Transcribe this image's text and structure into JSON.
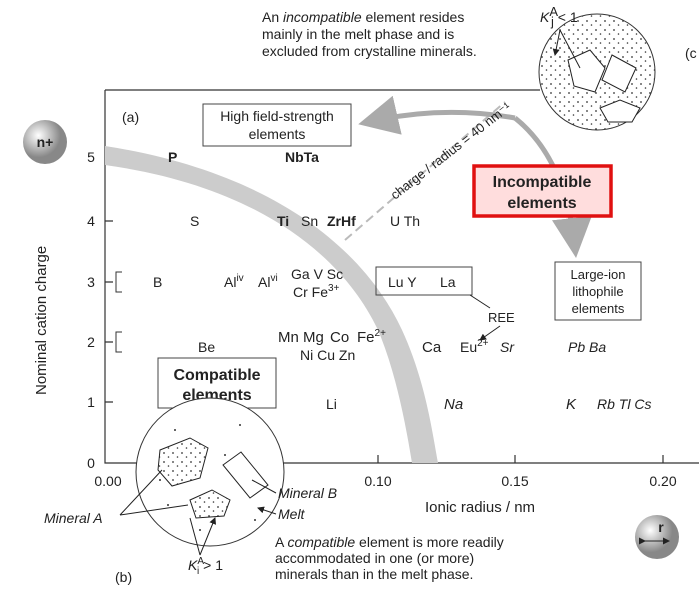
{
  "top_note": {
    "line1": [
      "An ",
      "incompatible",
      " element resides"
    ],
    "line2": "mainly in the melt phase and is",
    "line3": "excluded from crystalline minerals."
  },
  "panel_labels": {
    "a": "(a)",
    "b": "(b)",
    "c": "(c"
  },
  "icons": {
    "charge": "n+",
    "radius": "r"
  },
  "axes": {
    "y_label": "Nominal cation charge",
    "x_label": "Ionic radius / nm",
    "x_ticks": [
      "0.00",
      "0.10",
      "0.15",
      "0.20"
    ],
    "y_ticks": [
      "0",
      "1",
      "2",
      "3",
      "4",
      "5"
    ]
  },
  "boxes": {
    "hfse": [
      "High field-strength",
      "elements"
    ],
    "incompatible": [
      "Incompatible",
      "elements"
    ],
    "lile": [
      "Large-ion",
      "lithophile",
      "elements"
    ],
    "compatible": [
      "Compatible",
      "elements"
    ]
  },
  "line_label": "charge / radius = 40 nm⁻¹",
  "ree": "REE",
  "kj": {
    "base": "K",
    "sub": "j",
    "sup": "A",
    "rest": " < 1"
  },
  "ki": {
    "base": "K",
    "sub": "i",
    "sup": "A",
    "rest": " > 1"
  },
  "mineral_labels": {
    "a": "Mineral A",
    "b": "Mineral B",
    "melt": "Melt"
  },
  "bottom_note": {
    "line1": [
      "A ",
      "compatible",
      " element is more readily"
    ],
    "line2": "accommodated in one (or more)",
    "line3": "minerals than in the melt phase."
  },
  "elements": [
    {
      "symbol": "P"
    },
    {
      "symbol": "NbTa"
    },
    {
      "symbol": "S"
    },
    {
      "symbol": "Ti"
    },
    {
      "symbol": "Sn"
    },
    {
      "symbol": "ZrHf"
    },
    {
      "symbol": "U Th"
    },
    {
      "symbol": "B"
    },
    {
      "symbol": "Al",
      "sup": "iv"
    },
    {
      "symbol": "Al",
      "sup": "vi"
    },
    {
      "symbol": "Ga V Sc"
    },
    {
      "symbol": "Cr Fe",
      "sup": "3+"
    },
    {
      "symbol": "Lu Y"
    },
    {
      "symbol": "La"
    },
    {
      "symbol": "Be"
    },
    {
      "symbol": "Mn Mg"
    },
    {
      "symbol": "Co"
    },
    {
      "symbol": "Fe",
      "sup": "2+"
    },
    {
      "symbol": "Ni Cu Zn"
    },
    {
      "symbol": "Ca"
    },
    {
      "symbol": "Eu",
      "sup": "2+"
    },
    {
      "symbol": "Sr"
    },
    {
      "symbol": "Pb Ba"
    },
    {
      "symbol": "Li"
    },
    {
      "symbol": "Na"
    },
    {
      "symbol": "K"
    },
    {
      "symbol": "Rb Tl Cs"
    }
  ]
}
